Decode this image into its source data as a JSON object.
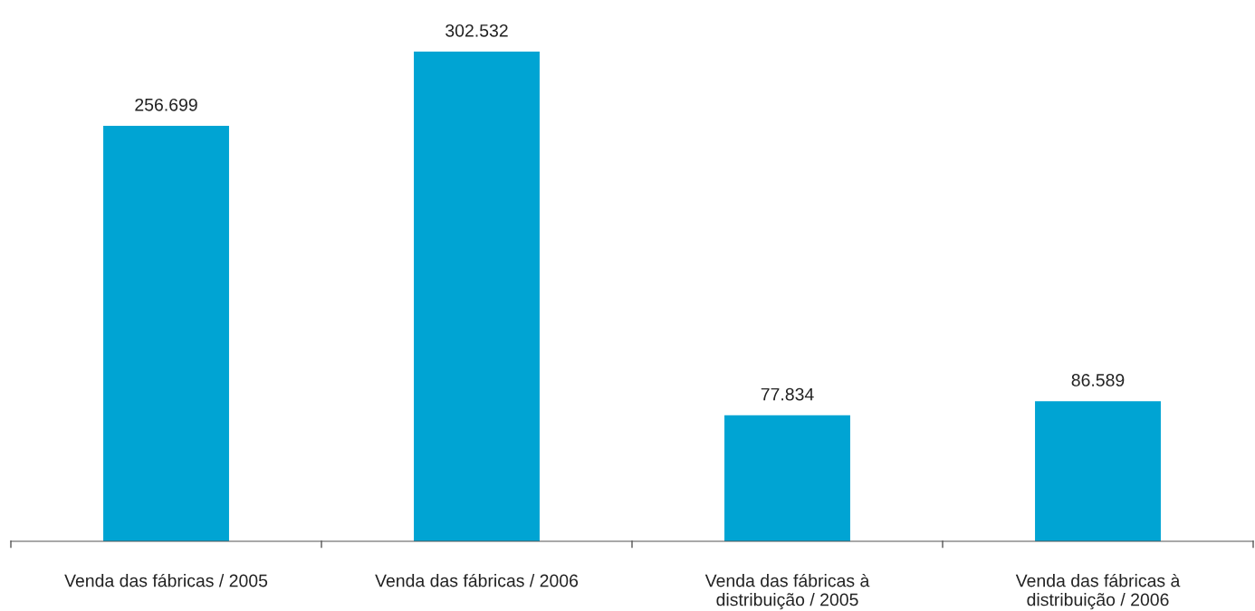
{
  "chart_data": {
    "type": "bar",
    "categories": [
      "Venda das fábricas / 2005",
      "Venda das fábricas / 2006",
      "Venda das fábricas à\ndistribuição / 2005",
      "Venda das fábricas à\ndistribuição / 2006"
    ],
    "values": [
      256699,
      302532,
      77834,
      86589
    ],
    "value_labels": [
      "256.699",
      "302.532",
      "77.834",
      "86.589"
    ],
    "color": "#00a4d3",
    "grid": false,
    "legend": false
  }
}
